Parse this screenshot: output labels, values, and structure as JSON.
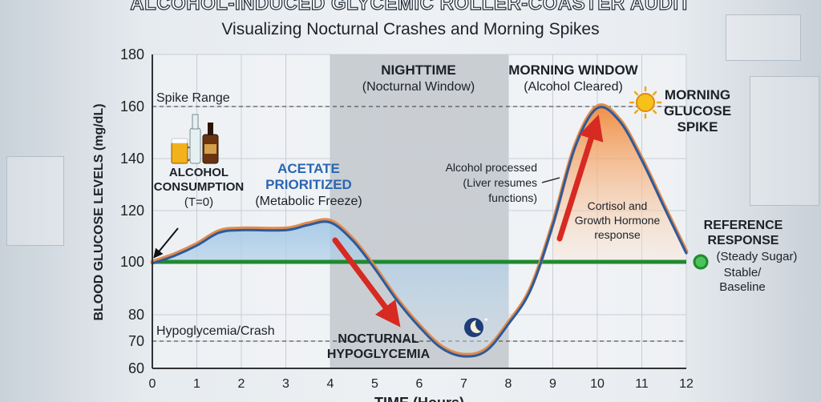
{
  "header": {
    "title": "Alcohol-Induced Glycemic Roller-Coaster Audit",
    "subtitle": "Visualizing Nocturnal Crashes and Morning Spikes"
  },
  "chart_data": {
    "type": "line",
    "ylabel": "BLOOD GLUCOSE LEVELS (mg/dL)",
    "xlabel": "TIME (Hours)",
    "xlim": [
      0,
      12
    ],
    "ylim": [
      60,
      180
    ],
    "x_ticks": [
      0,
      1,
      2,
      3,
      4,
      5,
      6,
      7,
      8,
      9,
      10,
      11,
      12
    ],
    "y_ticks": [
      60,
      70,
      80,
      100,
      120,
      140,
      160,
      180
    ],
    "grid": true,
    "series": [
      {
        "color": "#e38b4a",
        "x": [
          0,
          0.5,
          1,
          1.5,
          2,
          3,
          3.5,
          4,
          4.5,
          5,
          5.5,
          6,
          6.5,
          7,
          7.5,
          8,
          8.5,
          9,
          9.5,
          10,
          10.5,
          11,
          11.5,
          12
        ],
        "y": [
          100,
          103,
          107,
          112,
          113,
          113,
          115,
          116,
          109,
          98,
          86,
          76,
          68,
          65,
          67,
          77,
          90,
          115,
          145,
          160,
          155,
          140,
          122,
          104
        ]
      },
      {
        "name": "Reference Response (Steady Sugar)",
        "color": "#1f8a2e",
        "x": [
          0,
          12
        ],
        "y": [
          100,
          100
        ]
      }
    ],
    "reference_lines": [
      {
        "label": "Spike Range",
        "y": 160
      },
      {
        "label": "Hypoglycemia/Crash",
        "y": 70
      }
    ],
    "shaded_region": {
      "x": [
        4,
        8
      ]
    },
    "annotations": {
      "nighttime": [
        "NIGHTTIME",
        "(Nocturnal Window)"
      ],
      "morning_window": [
        "MORNING WINDOW",
        "(Alcohol Cleared)"
      ],
      "alcohol": [
        "ALCOHOL",
        "CONSUMPTION",
        "(T=0)"
      ],
      "acetate": [
        "ACETATE",
        "PRIORITIZED",
        "(Metabolic Freeze)"
      ],
      "processed": [
        "Alcohol processed",
        "(Liver resumes",
        "functions)"
      ],
      "cortisol": [
        "Cortisol and",
        "Growth Hormone",
        "response"
      ],
      "morning_spike": [
        "MORNING",
        "GLUCOSE",
        "SPIKE"
      ],
      "nocturnal_hypo": [
        "NOCTURNAL",
        "HYPOGLYCEMIA"
      ],
      "reference": [
        "REFERENCE",
        "RESPONSE",
        "(Steady Sugar)",
        "Stable/",
        "Baseline"
      ]
    }
  }
}
